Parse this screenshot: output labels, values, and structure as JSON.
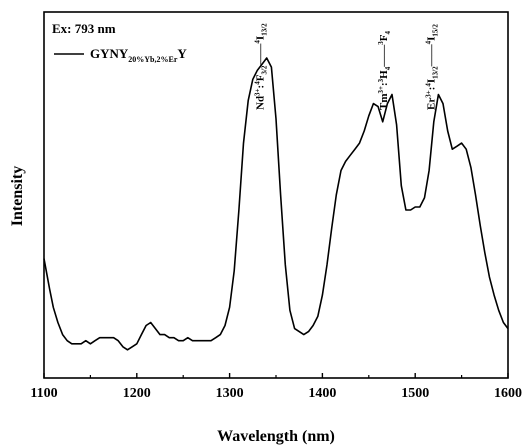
{
  "chart_data": {
    "type": "line",
    "xlabel": "Wavelength (nm)",
    "ylabel": "Intensity",
    "xlim": [
      1100,
      1600
    ],
    "ylim": [
      0,
      1.0
    ],
    "xticks": [
      "1100",
      "1200",
      "1300",
      "1400",
      "1500",
      "1600"
    ],
    "grid": false,
    "legend_position": "top-left",
    "excitation_label": "Ex: 793 nm",
    "legend": {
      "base": "GYNY",
      "sub": "20%Yb,2%Er",
      "tail": "Y"
    },
    "annotations": [
      {
        "id": "nd",
        "ion": "Nd",
        "ion_sup": "3+",
        "from": "F",
        "from_sup": "4",
        "from_sub": "3/2",
        "to": "I",
        "to_sup": "4",
        "to_sub": "13/2",
        "x": 1340
      },
      {
        "id": "tm",
        "ion": "Tm",
        "ion_sup": "3+",
        "from": "H",
        "from_sup": "3",
        "from_sub": "4",
        "to": "F",
        "to_sup": "3",
        "to_sub": "4",
        "x": 1473
      },
      {
        "id": "er",
        "ion": "Er",
        "ion_sup": "3+",
        "from": "I",
        "from_sup": "4",
        "from_sub": "13/2",
        "to": "I",
        "to_sup": "4",
        "to_sub": "15/2",
        "x": 1524
      }
    ],
    "series": [
      {
        "color": "#000000",
        "x": [
          1100,
          1103,
          1106,
          1110,
          1115,
          1120,
          1125,
          1130,
          1135,
          1140,
          1145,
          1150,
          1155,
          1160,
          1165,
          1170,
          1175,
          1180,
          1185,
          1190,
          1195,
          1200,
          1205,
          1210,
          1215,
          1220,
          1225,
          1230,
          1235,
          1240,
          1245,
          1250,
          1255,
          1260,
          1265,
          1270,
          1275,
          1280,
          1285,
          1290,
          1295,
          1300,
          1305,
          1310,
          1315,
          1320,
          1325,
          1330,
          1335,
          1340,
          1345,
          1350,
          1355,
          1360,
          1365,
          1370,
          1375,
          1380,
          1385,
          1390,
          1395,
          1400,
          1405,
          1410,
          1415,
          1420,
          1425,
          1430,
          1435,
          1440,
          1445,
          1450,
          1455,
          1460,
          1465,
          1470,
          1475,
          1480,
          1485,
          1490,
          1495,
          1500,
          1505,
          1510,
          1515,
          1520,
          1525,
          1530,
          1535,
          1540,
          1545,
          1550,
          1555,
          1560,
          1565,
          1570,
          1575,
          1580,
          1585,
          1590,
          1595,
          1600
        ],
        "y": [
          0.34,
          0.29,
          0.24,
          0.18,
          0.13,
          0.09,
          0.07,
          0.06,
          0.06,
          0.06,
          0.07,
          0.06,
          0.07,
          0.08,
          0.08,
          0.08,
          0.08,
          0.07,
          0.05,
          0.04,
          0.05,
          0.06,
          0.09,
          0.12,
          0.13,
          0.11,
          0.09,
          0.09,
          0.08,
          0.08,
          0.07,
          0.07,
          0.08,
          0.07,
          0.07,
          0.07,
          0.07,
          0.07,
          0.08,
          0.09,
          0.12,
          0.18,
          0.3,
          0.5,
          0.72,
          0.86,
          0.93,
          0.96,
          0.98,
          1.0,
          0.97,
          0.8,
          0.55,
          0.32,
          0.17,
          0.11,
          0.1,
          0.09,
          0.1,
          0.12,
          0.15,
          0.22,
          0.32,
          0.44,
          0.55,
          0.63,
          0.66,
          0.68,
          0.7,
          0.72,
          0.76,
          0.81,
          0.85,
          0.84,
          0.79,
          0.85,
          0.88,
          0.78,
          0.58,
          0.5,
          0.5,
          0.51,
          0.51,
          0.54,
          0.63,
          0.79,
          0.88,
          0.85,
          0.76,
          0.7,
          0.71,
          0.72,
          0.7,
          0.64,
          0.55,
          0.45,
          0.36,
          0.28,
          0.22,
          0.17,
          0.13,
          0.11
        ]
      }
    ]
  }
}
